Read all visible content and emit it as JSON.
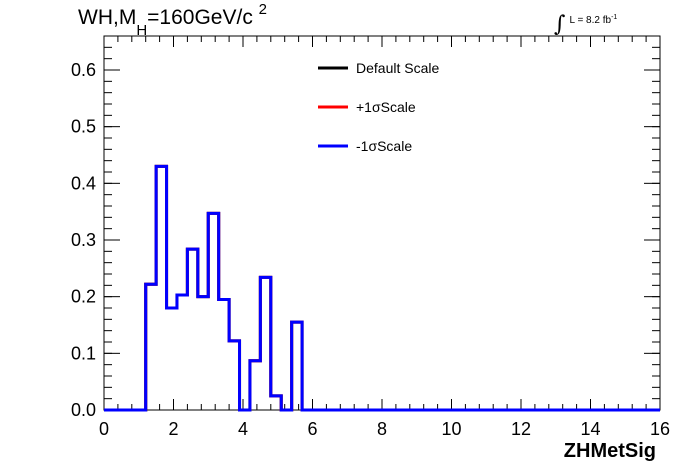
{
  "header": {
    "title_main": "WH,M",
    "title_sub": "H",
    "title_rest": "=160GeV/c",
    "title_sup": "2",
    "lumi_label": "L = 8.2 fb",
    "lumi_sup": "-1"
  },
  "chart_data": {
    "type": "line",
    "style": "step-histogram",
    "xlabel": "ZHMetSig",
    "ylabel": "",
    "xlim": [
      0,
      16
    ],
    "ylim": [
      0,
      0.66
    ],
    "x_ticks": [
      "0",
      "2",
      "4",
      "6",
      "8",
      "10",
      "12",
      "14",
      "16"
    ],
    "y_ticks": [
      "0.0",
      "0.1",
      "0.2",
      "0.3",
      "0.4",
      "0.5",
      "0.6"
    ],
    "grid": false,
    "legend_position": "top-center",
    "bin_edges": [
      0,
      0.3,
      0.6,
      0.9,
      1.2,
      1.5,
      1.8,
      2.1,
      2.4,
      2.7,
      3.0,
      3.3,
      3.6,
      3.9,
      4.2,
      4.5,
      4.8,
      5.1,
      5.4,
      5.7,
      6.0,
      16
    ],
    "series": [
      {
        "name": "Default Scale",
        "color": "#000000",
        "values": [
          0,
          0,
          0,
          0,
          0.222,
          0.43,
          0.18,
          0.203,
          0.284,
          0.2,
          0.347,
          0.195,
          0.122,
          0,
          0.087,
          0.234,
          0.025,
          0,
          0.155,
          0,
          0
        ]
      },
      {
        "name": "+1σScale",
        "color": "#ff0000",
        "values": [
          0,
          0,
          0,
          0,
          0.222,
          0.43,
          0.18,
          0.203,
          0.284,
          0.2,
          0.347,
          0.195,
          0.122,
          0,
          0.087,
          0.234,
          0.025,
          0,
          0.155,
          0,
          0
        ]
      },
      {
        "name": "-1σScale",
        "color": "#0000ff",
        "values": [
          0,
          0,
          0,
          0,
          0.222,
          0.43,
          0.18,
          0.203,
          0.284,
          0.2,
          0.347,
          0.195,
          0.122,
          0,
          0.087,
          0.234,
          0.025,
          0,
          0.155,
          0,
          0
        ]
      }
    ]
  }
}
